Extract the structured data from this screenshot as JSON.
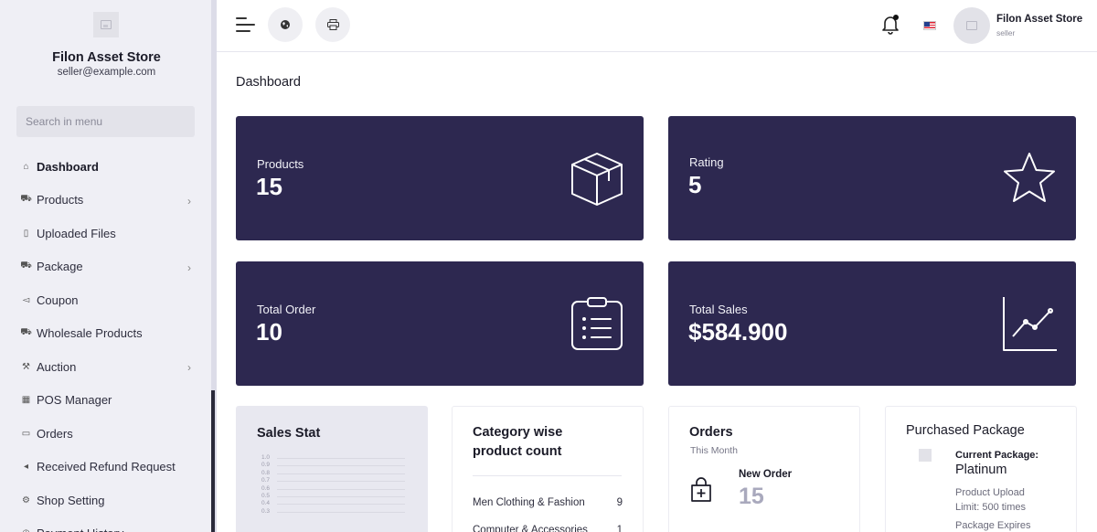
{
  "brand": {
    "name": "Filon Asset Store",
    "email": "seller@example.com"
  },
  "menu_search": {
    "placeholder": "Search in menu"
  },
  "menu": [
    {
      "label": "Dashboard",
      "icon": "home-icon",
      "active": true,
      "has_submenu": false
    },
    {
      "label": "Products",
      "icon": "cart-icon",
      "has_submenu": true
    },
    {
      "label": "Uploaded Files",
      "icon": "folder-icon",
      "has_submenu": false
    },
    {
      "label": "Package",
      "icon": "cart-icon",
      "has_submenu": true
    },
    {
      "label": "Coupon",
      "icon": "bullhorn-icon",
      "has_submenu": false
    },
    {
      "label": "Wholesale Products",
      "icon": "cart-icon",
      "has_submenu": false
    },
    {
      "label": "Auction",
      "icon": "gavel-icon",
      "has_submenu": true
    },
    {
      "label": "POS Manager",
      "icon": "pos-icon",
      "has_submenu": false
    },
    {
      "label": "Orders",
      "icon": "money-icon",
      "has_submenu": false
    },
    {
      "label": "Received Refund Request",
      "icon": "backward-icon",
      "has_submenu": false
    },
    {
      "label": "Shop Setting",
      "icon": "cog-icon",
      "has_submenu": false
    },
    {
      "label": "Payment History",
      "icon": "history-icon",
      "has_submenu": false
    }
  ],
  "topbar": {
    "user_name": "Filon Asset Store",
    "user_role": "seller"
  },
  "page_title": "Dashboard",
  "stats": {
    "products": {
      "label": "Products",
      "value": "15"
    },
    "rating": {
      "label": "Rating",
      "value": "5"
    },
    "total_order": {
      "label": "Total Order",
      "value": "10"
    },
    "total_sales": {
      "label": "Total Sales",
      "value": "$584.900"
    }
  },
  "sales_stat": {
    "title": "Sales Stat",
    "axis_ticks": [
      "1.0",
      "0.9",
      "0.8",
      "0.7",
      "0.6",
      "0.5",
      "0.4",
      "0.3"
    ]
  },
  "category": {
    "title_line1": "Category wise",
    "title_line2": "product count",
    "items": [
      {
        "name": "Men Clothing & Fashion",
        "count": "9"
      },
      {
        "name": "Computer & Accessories",
        "count": "1"
      }
    ]
  },
  "orders": {
    "title": "Orders",
    "subtitle": "This Month",
    "new_order_label": "New Order",
    "new_order_value": "15"
  },
  "package": {
    "title": "Purchased Package",
    "current_label": "Current Package:",
    "current_value": "Platinum",
    "upload_line1": "Product Upload",
    "upload_line2": "Limit: 500 times",
    "expires": "Package Expires"
  },
  "colors": {
    "card_bg": "#2d2850",
    "sidebar_bg": "#efeff5"
  }
}
